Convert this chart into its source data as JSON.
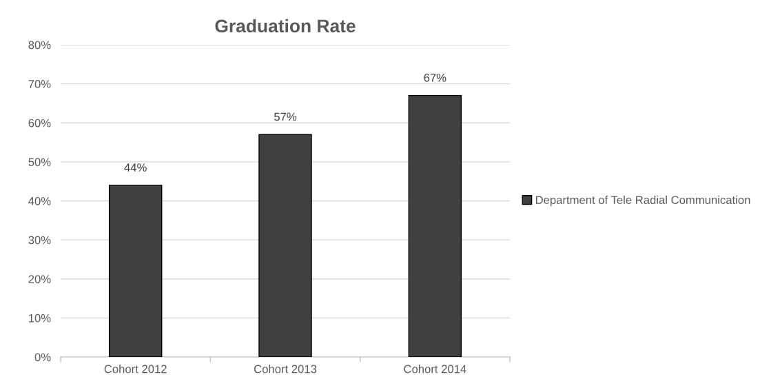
{
  "chart_data": {
    "type": "bar",
    "title": "Graduation Rate",
    "categories": [
      "Cohort 2012",
      "Cohort 2013",
      "Cohort 2014"
    ],
    "series": [
      {
        "name": "Department of Tele Radial Communication",
        "color": "#404040",
        "values": [
          44,
          57,
          67
        ],
        "value_labels": [
          "44%",
          "57%",
          "67%"
        ]
      }
    ],
    "ylim": [
      0,
      80
    ],
    "yticks": [
      {
        "value": 0,
        "label": "0%"
      },
      {
        "value": 10,
        "label": "10%"
      },
      {
        "value": 20,
        "label": "20%"
      },
      {
        "value": 30,
        "label": "30%"
      },
      {
        "value": 40,
        "label": "40%"
      },
      {
        "value": 50,
        "label": "50%"
      },
      {
        "value": 60,
        "label": "60%"
      },
      {
        "value": 70,
        "label": "70%"
      },
      {
        "value": 80,
        "label": "80%"
      }
    ],
    "grid": "y",
    "legend": "right"
  }
}
